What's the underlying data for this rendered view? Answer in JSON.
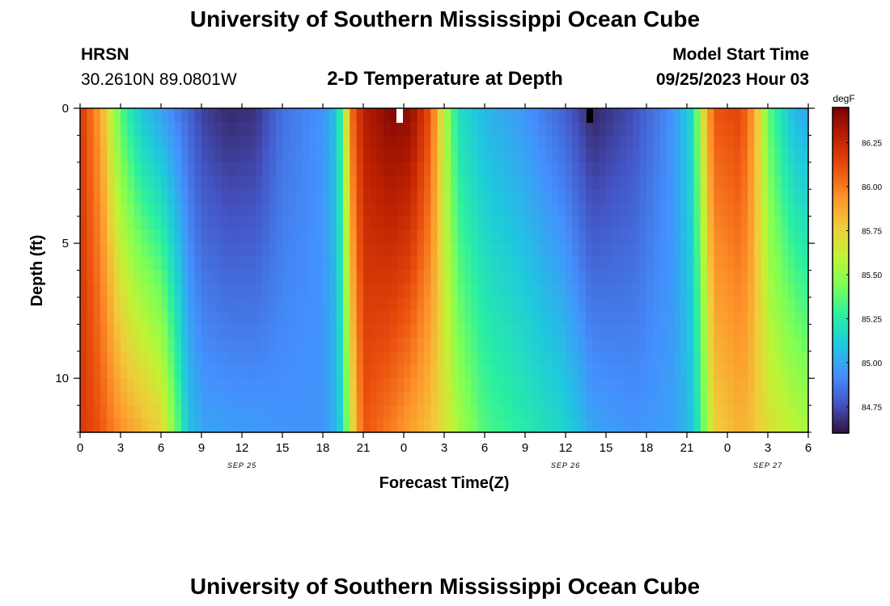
{
  "header": {
    "title": "University of Southern Mississippi Ocean Cube",
    "station": "HRSN",
    "coords": "30.2610N  89.0801W",
    "subtitle": "2-D Temperature at Depth",
    "model_label": "Model Start Time",
    "model_time": "09/25/2023 Hour 03"
  },
  "footer": {
    "title": "University of Southern Mississippi Ocean Cube"
  },
  "chart_data": {
    "type": "heatmap",
    "title": "2-D Temperature at Depth",
    "xlabel": "Forecast Time(Z)",
    "ylabel": "Depth (ft)",
    "x_unit": "hours from Sep 25 00Z",
    "xlim": [
      0,
      54
    ],
    "ylim": [
      0,
      12
    ],
    "y_inverted": true,
    "x_tick_labels": [
      "0",
      "3",
      "6",
      "9",
      "12",
      "15",
      "18",
      "21",
      "0",
      "3",
      "6",
      "9",
      "12",
      "15",
      "18",
      "21",
      "0",
      "3",
      "6"
    ],
    "date_labels": [
      {
        "text": "SEP 25",
        "x": 12
      },
      {
        "text": "SEP 26",
        "x": 36
      },
      {
        "text": "SEP 27",
        "x": 51
      }
    ],
    "y_tick_labels": [
      "0",
      "5",
      "10"
    ],
    "y_tick_values": [
      0,
      5,
      10
    ],
    "y_minor_ticks": [
      1,
      2,
      3,
      4,
      6,
      7,
      8,
      9,
      11,
      12
    ],
    "depth_levels_ft": [
      0,
      0.5,
      1,
      1.5,
      2,
      2.5,
      3,
      3.5,
      4,
      4.5,
      5,
      5.5,
      6,
      6.5,
      7,
      7.5,
      8,
      8.5,
      9,
      9.5,
      10,
      10.5,
      11,
      11.5
    ],
    "colorbar": {
      "unit": "degF",
      "range": [
        84.6,
        86.45
      ],
      "tick_values": [
        84.75,
        85.0,
        85.25,
        85.5,
        85.75,
        86.0,
        86.25
      ],
      "tick_labels": [
        "84.75",
        "85.00",
        "85.25",
        "85.50",
        "85.75",
        "86.00",
        "86.25"
      ],
      "colormap": [
        "#30123b",
        "#4454c4",
        "#4490fe",
        "#1fc8de",
        "#29efa2",
        "#7dff56",
        "#c1f334",
        "#f1ca3a",
        "#fe922a",
        "#ea4e0d",
        "#be2102",
        "#7a0403"
      ]
    },
    "profiles": [
      {
        "x": 0,
        "surface": 86.2,
        "bottom": 86.2
      },
      {
        "x": 1.5,
        "surface": 85.9,
        "bottom": 86.1
      },
      {
        "x": 3,
        "surface": 85.35,
        "bottom": 85.95
      },
      {
        "x": 4.5,
        "surface": 85.1,
        "bottom": 85.85
      },
      {
        "x": 6,
        "surface": 84.98,
        "bottom": 85.75
      },
      {
        "x": 7,
        "surface": 84.9,
        "bottom": 85.45
      },
      {
        "x": 8,
        "surface": 84.82,
        "bottom": 85.1
      },
      {
        "x": 9,
        "surface": 84.72,
        "bottom": 85.0
      },
      {
        "x": 11,
        "surface": 84.66,
        "bottom": 84.98
      },
      {
        "x": 13,
        "surface": 84.68,
        "bottom": 84.97
      },
      {
        "x": 15,
        "surface": 84.85,
        "bottom": 84.95
      },
      {
        "x": 18,
        "surface": 84.95,
        "bottom": 84.95
      },
      {
        "x": 19,
        "surface": 85.1,
        "bottom": 85.05
      },
      {
        "x": 19.5,
        "surface": 85.4,
        "bottom": 85.2
      },
      {
        "x": 20,
        "surface": 86.0,
        "bottom": 85.6
      },
      {
        "x": 21,
        "surface": 86.3,
        "bottom": 86.1
      },
      {
        "x": 23,
        "surface": 86.42,
        "bottom": 86.0
      },
      {
        "x": 24.5,
        "surface": 86.4,
        "bottom": 85.9
      },
      {
        "x": 26,
        "surface": 86.1,
        "bottom": 85.8
      },
      {
        "x": 27,
        "surface": 85.6,
        "bottom": 85.7
      },
      {
        "x": 28,
        "surface": 85.2,
        "bottom": 85.55
      },
      {
        "x": 30,
        "surface": 85.05,
        "bottom": 85.35
      },
      {
        "x": 33,
        "surface": 84.95,
        "bottom": 85.25
      },
      {
        "x": 36,
        "surface": 84.8,
        "bottom": 85.15
      },
      {
        "x": 38,
        "surface": 84.65,
        "bottom": 85.0
      },
      {
        "x": 41,
        "surface": 84.75,
        "bottom": 84.95
      },
      {
        "x": 44,
        "surface": 84.95,
        "bottom": 84.98
      },
      {
        "x": 45.5,
        "surface": 85.2,
        "bottom": 85.1
      },
      {
        "x": 46,
        "surface": 85.6,
        "bottom": 85.3
      },
      {
        "x": 47,
        "surface": 86.1,
        "bottom": 85.75
      },
      {
        "x": 49,
        "surface": 86.15,
        "bottom": 85.85
      },
      {
        "x": 50,
        "surface": 85.9,
        "bottom": 85.8
      },
      {
        "x": 51,
        "surface": 85.4,
        "bottom": 85.7
      },
      {
        "x": 52,
        "surface": 85.2,
        "bottom": 85.65
      },
      {
        "x": 53,
        "surface": 85.05,
        "bottom": 85.6
      },
      {
        "x": 54,
        "surface": 85.0,
        "bottom": 85.55
      }
    ],
    "surface_markers": [
      {
        "x": 23.7,
        "color": "#ffffff"
      },
      {
        "x": 37.8,
        "color": "#000000"
      }
    ]
  }
}
